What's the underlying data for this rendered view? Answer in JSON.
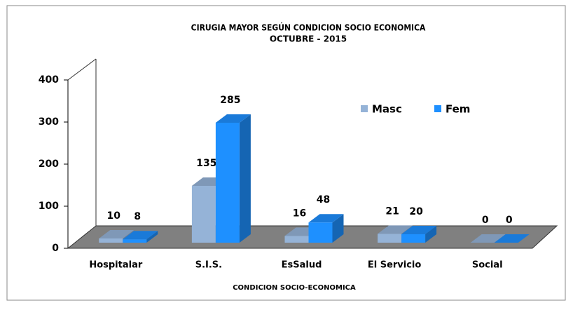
{
  "chart_data": {
    "type": "bar3d",
    "title": "CIRUGIA MAYOR SEGÚN CONDICION  SOCIO ECONOMICA",
    "subtitle": "OCTUBRE - 2015",
    "x_label": "CONDICION SOCIO-ECONOMICA",
    "categories": [
      "Hospitalar",
      "S.I.S.",
      "EsSalud",
      "El Servicio",
      "Social"
    ],
    "series": [
      {
        "name": "Masc",
        "color": "#95b3d7",
        "values": [
          10,
          135,
          16,
          21,
          0
        ]
      },
      {
        "name": "Fem",
        "color": "#1e90ff",
        "values": [
          8,
          285,
          48,
          20,
          0
        ]
      }
    ],
    "ylim": [
      0,
      400
    ],
    "yticks": [
      0,
      100,
      200,
      300,
      400
    ],
    "grid": false
  }
}
